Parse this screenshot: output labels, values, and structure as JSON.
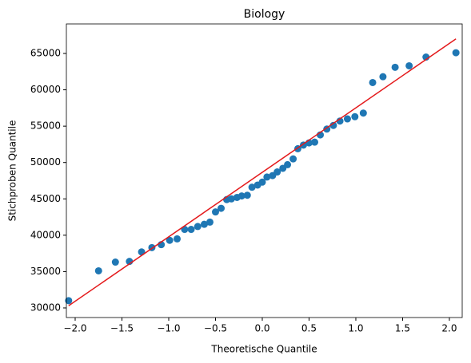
{
  "chart_data": {
    "type": "scatter",
    "title": "Biology",
    "xlabel": "Theoretische Quantile",
    "ylabel": "Stichproben Quantile",
    "color": "#1f77b4",
    "x": [
      -2.07,
      -1.75,
      -1.57,
      -1.42,
      -1.29,
      -1.18,
      -1.08,
      -0.99,
      -0.91,
      -0.83,
      -0.76,
      -0.69,
      -0.62,
      -0.56,
      -0.5,
      -0.44,
      -0.38,
      -0.33,
      -0.27,
      -0.22,
      -0.16,
      -0.11,
      -0.05,
      0.0,
      0.05,
      0.11,
      0.16,
      0.22,
      0.27,
      0.33,
      0.38,
      0.44,
      0.5,
      0.56,
      0.62,
      0.69,
      0.76,
      0.83,
      0.91,
      0.99,
      1.08,
      1.18,
      1.29,
      1.42,
      1.57,
      1.75,
      2.07
    ],
    "values": [
      31000,
      35100,
      36300,
      36400,
      37700,
      38300,
      38700,
      39300,
      39500,
      40800,
      40800,
      41200,
      41500,
      41800,
      43200,
      43700,
      44900,
      45000,
      45200,
      45400,
      45500,
      46600,
      46900,
      47300,
      48000,
      48200,
      48700,
      49200,
      49700,
      50500,
      51900,
      52400,
      52700,
      52800,
      53800,
      54600,
      55100,
      55700,
      56000,
      56300,
      56800,
      61000,
      61800,
      63100,
      63300,
      64500,
      65100
    ],
    "fit_line": {
      "x": [
        -2.07,
        2.07
      ],
      "values": [
        30300,
        67000
      ],
      "color": "#e41a1c"
    },
    "xlim": [
      -2.094,
      2.137
    ],
    "ylim": [
      28680,
      69060
    ],
    "xticks": [
      {
        "value": -2,
        "label": "−2.0"
      },
      {
        "value": -1.5,
        "label": "−1.5"
      },
      {
        "value": -1,
        "label": "−1.0"
      },
      {
        "value": -0.5,
        "label": "−0.5"
      },
      {
        "value": 0,
        "label": "0.0"
      },
      0.5,
      {
        "value": 1,
        "label": "1.0"
      },
      1.5,
      {
        "value": 2,
        "label": "2.0"
      }
    ],
    "yticks": [
      30000,
      35000,
      40000,
      45000,
      50000,
      55000,
      60000,
      65000
    ],
    "grid": false
  }
}
